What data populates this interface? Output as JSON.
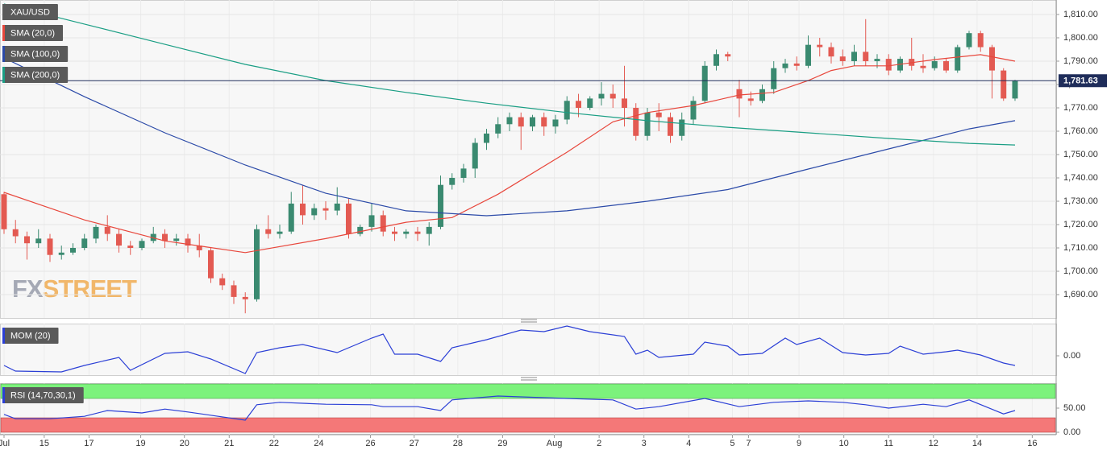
{
  "chart_data": [
    {
      "type": "candlestick",
      "title": "XAU/USD",
      "watermark": [
        "FX",
        "STREET"
      ],
      "up_color": "#3a8a70",
      "down_color": "#e35a52",
      "open": [
        1733,
        1718,
        1715,
        1712,
        1714,
        1707,
        1708,
        1710,
        1714,
        1719,
        1716,
        1711,
        1710,
        1713,
        1716,
        1713,
        1714,
        1711,
        1709,
        1697,
        1694,
        1689,
        1688,
        1718,
        1716,
        1717,
        1729,
        1724,
        1727,
        1726,
        1729,
        1716,
        1719,
        1724,
        1717,
        1716,
        1717,
        1716,
        1719,
        1737,
        1740,
        1744,
        1755,
        1759,
        1763,
        1766,
        1762,
        1766,
        1762,
        1765,
        1773,
        1770,
        1774,
        1776,
        1774,
        1770,
        1758,
        1768,
        1766,
        1758,
        1765,
        1773,
        1788,
        1793,
        1778,
        1774,
        1773,
        1778,
        1787,
        1789,
        1788,
        1797,
        1796,
        1792,
        1790,
        1794,
        1790,
        1791,
        1786,
        1791,
        1788,
        1787,
        1790,
        1786,
        1796,
        1802,
        1796,
        1786,
        1774
      ],
      "high": [
        1734,
        1722,
        1717,
        1718,
        1716,
        1711,
        1712,
        1716,
        1720,
        1724,
        1718,
        1713,
        1714,
        1719,
        1718,
        1716,
        1716,
        1716,
        1710,
        1699,
        1696,
        1691,
        1720,
        1724,
        1720,
        1734,
        1737,
        1729,
        1730,
        1736,
        1731,
        1720,
        1729,
        1726,
        1719,
        1718,
        1719,
        1721,
        1741,
        1742,
        1746,
        1757,
        1761,
        1766,
        1768,
        1768,
        1767,
        1768,
        1767,
        1775,
        1776,
        1775,
        1781,
        1780,
        1788,
        1772,
        1770,
        1772,
        1768,
        1768,
        1775,
        1790,
        1795,
        1794,
        1782,
        1777,
        1780,
        1790,
        1791,
        1792,
        1801,
        1800,
        1798,
        1795,
        1797,
        1808,
        1793,
        1793,
        1792,
        1800,
        1793,
        1792,
        1791,
        1797,
        1803,
        1803,
        1797,
        1787,
        1782
      ],
      "low": [
        1716,
        1712,
        1705,
        1710,
        1704,
        1705,
        1707,
        1709,
        1712,
        1713,
        1708,
        1707,
        1709,
        1712,
        1710,
        1711,
        1708,
        1706,
        1695,
        1692,
        1686,
        1682,
        1687,
        1714,
        1714,
        1716,
        1720,
        1722,
        1722,
        1724,
        1714,
        1715,
        1717,
        1715,
        1713,
        1714,
        1713,
        1711,
        1718,
        1735,
        1738,
        1740,
        1752,
        1757,
        1760,
        1752,
        1760,
        1758,
        1759,
        1763,
        1766,
        1769,
        1771,
        1770,
        1762,
        1756,
        1756,
        1760,
        1755,
        1756,
        1763,
        1772,
        1786,
        1790,
        1766,
        1771,
        1772,
        1776,
        1785,
        1786,
        1787,
        1792,
        1789,
        1788,
        1788,
        1788,
        1787,
        1784,
        1785,
        1786,
        1785,
        1786,
        1785,
        1785,
        1795,
        1794,
        1774,
        1773,
        1773
      ],
      "close": [
        1718,
        1715,
        1712,
        1714,
        1707,
        1708,
        1710,
        1714,
        1719,
        1716,
        1711,
        1710,
        1713,
        1716,
        1713,
        1714,
        1711,
        1709,
        1697,
        1694,
        1689,
        1688,
        1718,
        1716,
        1717,
        1729,
        1724,
        1727,
        1726,
        1729,
        1716,
        1719,
        1724,
        1717,
        1716,
        1717,
        1716,
        1719,
        1737,
        1740,
        1744,
        1755,
        1759,
        1763,
        1766,
        1762,
        1766,
        1762,
        1765,
        1773,
        1770,
        1774,
        1776,
        1774,
        1770,
        1758,
        1768,
        1766,
        1758,
        1765,
        1773,
        1788,
        1793,
        1792,
        1774,
        1773,
        1778,
        1787,
        1789,
        1788,
        1797,
        1796,
        1792,
        1790,
        1794,
        1790,
        1791,
        1786,
        1791,
        1788,
        1787,
        1790,
        1786,
        1796,
        1802,
        1796,
        1786,
        1774,
        1781.63
      ],
      "series": [
        {
          "name": "SMA (20,0)",
          "color": "#e8473c",
          "x": [
            0,
            7,
            14,
            21,
            28,
            35,
            39,
            43,
            49,
            53,
            56,
            60,
            64,
            67,
            70,
            72,
            74,
            77,
            81,
            85,
            88
          ],
          "values": [
            1733.8,
            1722,
            1713,
            1708,
            1714,
            1721,
            1723,
            1733,
            1751,
            1764,
            1768,
            1771,
            1775.5,
            1776.6,
            1781.7,
            1786,
            1788,
            1788,
            1790.7,
            1792.8,
            1790
          ]
        },
        {
          "name": "SMA (100,0)",
          "color": "#2b4aa8",
          "x": [
            0,
            7,
            14,
            21,
            28,
            35,
            42,
            49,
            56,
            63,
            70,
            77,
            84,
            88
          ],
          "values": [
            1791.4,
            1774.8,
            1759.3,
            1745.5,
            1733.4,
            1725.9,
            1723.8,
            1725.9,
            1730,
            1735,
            1743.8,
            1752.4,
            1761,
            1764.5
          ]
        },
        {
          "name": "SMA (200,0)",
          "color": "#1a9e84",
          "x": [
            0,
            7,
            14,
            21,
            28,
            35,
            42,
            49,
            56,
            63,
            70,
            77,
            84,
            88
          ],
          "values": [
            1814.5,
            1805.9,
            1797.2,
            1788.6,
            1781.7,
            1776.6,
            1772,
            1768,
            1764.5,
            1761.7,
            1759.3,
            1756.9,
            1754.8,
            1754.1
          ]
        }
      ],
      "last_price": {
        "value": 1781.63,
        "label": "1,781.63"
      },
      "ylim": [
        1680,
        1816.2
      ],
      "yticks": [
        {
          "value": 1690,
          "label": "1,690.00"
        },
        {
          "value": 1700,
          "label": "1,700.00"
        },
        {
          "value": 1710,
          "label": "1,710.00"
        },
        {
          "value": 1720,
          "label": "1,720.00"
        },
        {
          "value": 1730,
          "label": "1,730.00"
        },
        {
          "value": 1740,
          "label": "1,740.00"
        },
        {
          "value": 1750,
          "label": "1,750.00"
        },
        {
          "value": 1760,
          "label": "1,760.00"
        },
        {
          "value": 1770,
          "label": "1,770.00"
        },
        {
          "value": 1780,
          "label": "1,780.00"
        },
        {
          "value": 1790,
          "label": "1,790.00"
        },
        {
          "value": 1800,
          "label": "1,800.00"
        },
        {
          "value": 1810,
          "label": "1,810.00"
        }
      ],
      "xlim": [
        -0.35,
        91.58
      ],
      "xticks": [
        {
          "value": 0,
          "label": "Jul"
        },
        {
          "value": 3.5,
          "label": "15"
        },
        {
          "value": 7.4,
          "label": "17"
        },
        {
          "value": 11.9,
          "label": "19"
        },
        {
          "value": 15.7,
          "label": "20"
        },
        {
          "value": 19.6,
          "label": "21"
        },
        {
          "value": 23.5,
          "label": "22"
        },
        {
          "value": 27.4,
          "label": "24"
        },
        {
          "value": 31.9,
          "label": "26"
        },
        {
          "value": 35.7,
          "label": "27"
        },
        {
          "value": 39.5,
          "label": "28"
        },
        {
          "value": 43.4,
          "label": "29"
        },
        {
          "value": 47.9,
          "label": "Aug"
        },
        {
          "value": 51.8,
          "label": "2"
        },
        {
          "value": 55.7,
          "label": "3"
        },
        {
          "value": 59.6,
          "label": "4"
        },
        {
          "value": 63.4,
          "label": "5"
        },
        {
          "value": 64.8,
          "label": "7"
        },
        {
          "value": 69.2,
          "label": "9"
        },
        {
          "value": 73.1,
          "label": "10"
        },
        {
          "value": 77,
          "label": "11"
        },
        {
          "value": 80.9,
          "label": "12"
        },
        {
          "value": 84.7,
          "label": "14"
        },
        {
          "value": 89.5,
          "label": "16"
        }
      ],
      "grid": true
    },
    {
      "type": "line",
      "title": "MOM (20)",
      "series": [
        {
          "color": "#2b3fd6",
          "x": [
            0,
            1,
            5,
            7,
            10,
            11,
            14,
            16,
            18,
            21,
            22,
            24,
            26,
            29,
            32,
            33,
            34,
            36,
            38,
            39,
            42,
            45,
            47,
            49,
            51,
            54,
            55,
            56,
            57,
            60,
            61,
            63,
            64,
            66,
            68,
            69,
            71,
            73,
            75,
            77,
            78,
            80,
            82,
            83,
            85,
            87,
            88
          ],
          "values": [
            -6,
            -9.5,
            -10,
            -6,
            -1,
            -9,
            1.5,
            2.5,
            -2,
            -11,
            2,
            5,
            7,
            2,
            11,
            13.5,
            1,
            1,
            -3.5,
            5,
            10,
            16,
            15,
            18.5,
            15,
            12,
            1,
            3.5,
            -1,
            1,
            8.5,
            6,
            0.5,
            1.5,
            11,
            7,
            11,
            2,
            0.5,
            1.5,
            6,
            1,
            2.5,
            3.5,
            0.5,
            -4.5,
            -6
          ]
        }
      ],
      "ylim": [
        -12,
        20
      ],
      "yticks": [
        {
          "value": 0,
          "label": "0.00"
        }
      ]
    },
    {
      "type": "line",
      "title": "RSI (14,70,30,1)",
      "overbought": 70,
      "oversold": 30,
      "series": [
        {
          "color": "#2b3fd6",
          "x": [
            0,
            1,
            4,
            7,
            9,
            12,
            14,
            16,
            21,
            22,
            24,
            28,
            32,
            33,
            36,
            38,
            39,
            43,
            49,
            53,
            55,
            57,
            61,
            64,
            67,
            70,
            73,
            75,
            77,
            80,
            82,
            84,
            87,
            88
          ],
          "values": [
            37,
            28,
            28,
            33,
            45,
            40,
            48,
            42,
            25,
            57,
            62,
            58,
            57,
            53,
            53,
            45,
            67,
            75,
            70,
            67,
            48,
            53,
            70,
            53,
            62,
            65,
            62,
            57,
            50,
            58,
            53,
            67,
            38,
            45
          ]
        }
      ],
      "ylim": [
        -5,
        101.7
      ],
      "yticks": [
        {
          "value": 0,
          "label": "0.00"
        },
        {
          "value": 50,
          "label": "50.00"
        }
      ]
    }
  ]
}
